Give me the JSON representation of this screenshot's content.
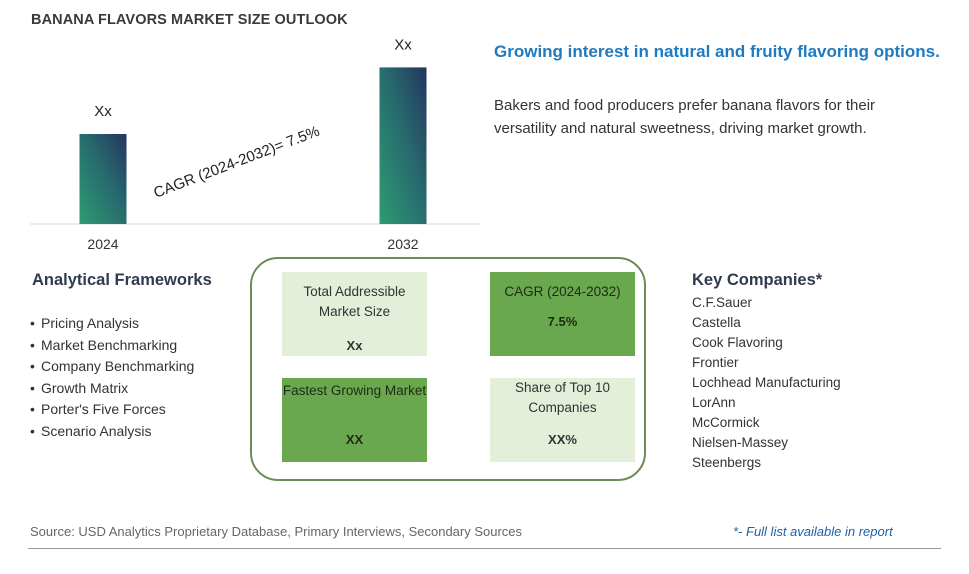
{
  "title": "BANANA FLAVORS MARKET SIZE OUTLOOK",
  "chart_data": {
    "type": "bar",
    "categories": [
      "2024",
      "2032"
    ],
    "data_labels": [
      "Xx",
      "Xx"
    ],
    "values": [
      0.5,
      0.87
    ],
    "annotation": "CAGR (2024-2032)=  7.5%",
    "xlabel": "",
    "ylabel": "",
    "grid": false,
    "colors": [
      "#2c8a6c",
      "#263d66"
    ]
  },
  "headline": "Growing interest in natural and fruity flavoring options.",
  "description": "Bakers and food producers prefer banana flavors for their versatility and natural sweetness, driving market growth.",
  "frameworks": {
    "title": "Analytical Frameworks",
    "items": [
      "Pricing Analysis",
      "Market Benchmarking",
      "Company Benchmarking",
      "Growth Matrix",
      "Porter's Five Forces",
      "Scenario Analysis"
    ]
  },
  "metrics": {
    "tam": {
      "label": "Total Addressible Market Size",
      "value": "Xx"
    },
    "cagr": {
      "label": "CAGR (2024-2032)",
      "value": "7.5%"
    },
    "fastest": {
      "label": "Fastest Growing Market",
      "value": "XX"
    },
    "share": {
      "label": "Share of Top 10 Companies",
      "value": "XX%"
    }
  },
  "companies": {
    "title": "Key Companies*",
    "items": [
      "C.F.Sauer",
      "Castella",
      "Cook Flavoring",
      "Frontier",
      "Lochhead Manufacturing",
      "LorAnn",
      "McCormick",
      "Nielsen-Massey",
      "Steenbergs"
    ]
  },
  "footer": {
    "source": "Source: USD Analytics Proprietary Database, Primary Interviews, Secondary Sources",
    "note": "*- Full list available in report"
  }
}
